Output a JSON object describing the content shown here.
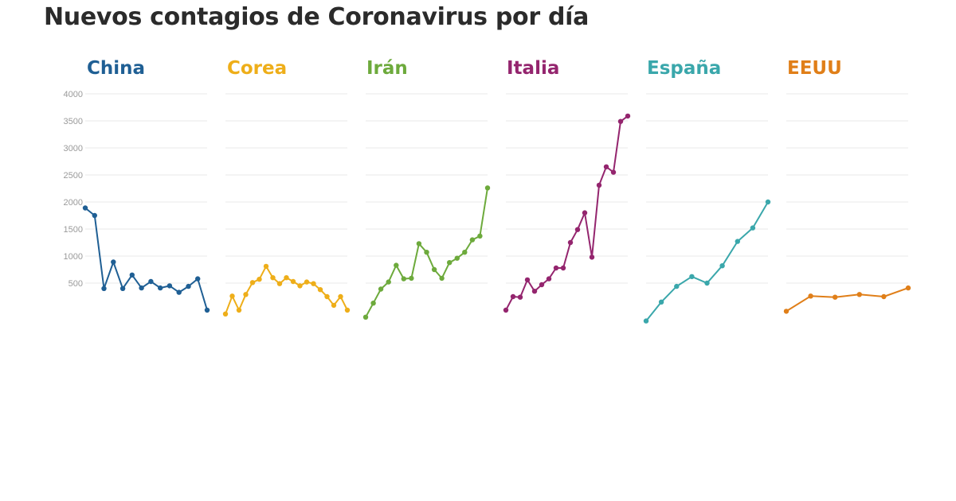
{
  "title": "Nuevos contagios de Coronavirus por día",
  "chart_data": {
    "type": "line",
    "title": "Nuevos contagios de Coronavirus por día",
    "xlabel": "",
    "ylabel": "",
    "ylim": [
      0,
      4000
    ],
    "yticks": [
      "4000",
      "3500",
      "3000",
      "2500",
      "2000",
      "1500",
      "1000",
      "500"
    ],
    "grid": true,
    "layout": "small-multiples",
    "panels": [
      {
        "name": "China",
        "color": "#1f5f94",
        "values": [
          1890,
          1750,
          400,
          890,
          400,
          650,
          410,
          530,
          410,
          450,
          330,
          440,
          580,
          0
        ]
      },
      {
        "name": "Corea",
        "color": "#eeae19",
        "values": [
          -70,
          260,
          0,
          290,
          510,
          570,
          810,
          600,
          490,
          600,
          530,
          450,
          520,
          490,
          380,
          250,
          90,
          250,
          0
        ]
      },
      {
        "name": "Irán",
        "color": "#6daa3c",
        "values": [
          -130,
          130,
          390,
          520,
          830,
          580,
          590,
          1230,
          1070,
          750,
          590,
          880,
          960,
          1070,
          1300,
          1370,
          2260
        ]
      },
      {
        "name": "Italia",
        "color": "#94256e",
        "values": [
          0,
          250,
          240,
          560,
          350,
          470,
          580,
          780,
          780,
          1250,
          1490,
          1800,
          980,
          2310,
          2650,
          2550,
          3490,
          3590
        ]
      },
      {
        "name": "España",
        "color": "#3aa7ab",
        "values": [
          -200,
          150,
          440,
          620,
          500,
          820,
          1270,
          1520,
          2000
        ]
      },
      {
        "name": "EEUU",
        "color": "#e07f19",
        "values": [
          -20,
          260,
          240,
          290,
          250,
          410
        ]
      }
    ]
  }
}
